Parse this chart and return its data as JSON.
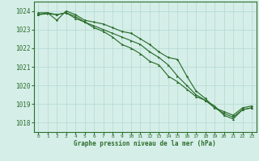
{
  "title": "Graphe pression niveau de la mer (hPa)",
  "bg_color": "#d5eee8",
  "grid_color": "#b8ddd4",
  "line_color": "#2d6e2d",
  "ylim": [
    1017.5,
    1024.5
  ],
  "xlim": [
    -0.5,
    23.5
  ],
  "yticks": [
    1018,
    1019,
    1020,
    1021,
    1022,
    1023,
    1024
  ],
  "xticks": [
    0,
    1,
    2,
    3,
    4,
    5,
    6,
    7,
    8,
    9,
    10,
    11,
    12,
    13,
    14,
    15,
    16,
    17,
    18,
    19,
    20,
    21,
    22,
    23
  ],
  "series1": [
    1023.8,
    1023.85,
    1023.8,
    1023.9,
    1023.7,
    1023.4,
    1023.2,
    1023.0,
    1022.8,
    1022.6,
    1022.4,
    1022.2,
    1021.8,
    1021.5,
    1021.1,
    1020.5,
    1020.0,
    1019.5,
    1019.2,
    1018.8,
    1018.5,
    1018.3,
    1018.7,
    1018.8
  ],
  "series2": [
    1023.9,
    1023.9,
    1023.5,
    1024.0,
    1023.8,
    1023.5,
    1023.4,
    1023.3,
    1023.1,
    1022.9,
    1022.8,
    1022.5,
    1022.2,
    1021.8,
    1021.5,
    1021.4,
    1020.5,
    1019.7,
    1019.3,
    1018.8,
    1018.6,
    1018.4,
    1018.8,
    1018.9
  ],
  "series3": [
    1023.8,
    1023.9,
    1023.8,
    1023.9,
    1023.6,
    1023.4,
    1023.1,
    1022.9,
    1022.6,
    1022.2,
    1022.0,
    1021.7,
    1021.3,
    1021.1,
    1020.5,
    1020.2,
    1019.8,
    1019.4,
    1019.2,
    1018.9,
    1018.4,
    1018.2,
    1018.7,
    1018.8
  ]
}
